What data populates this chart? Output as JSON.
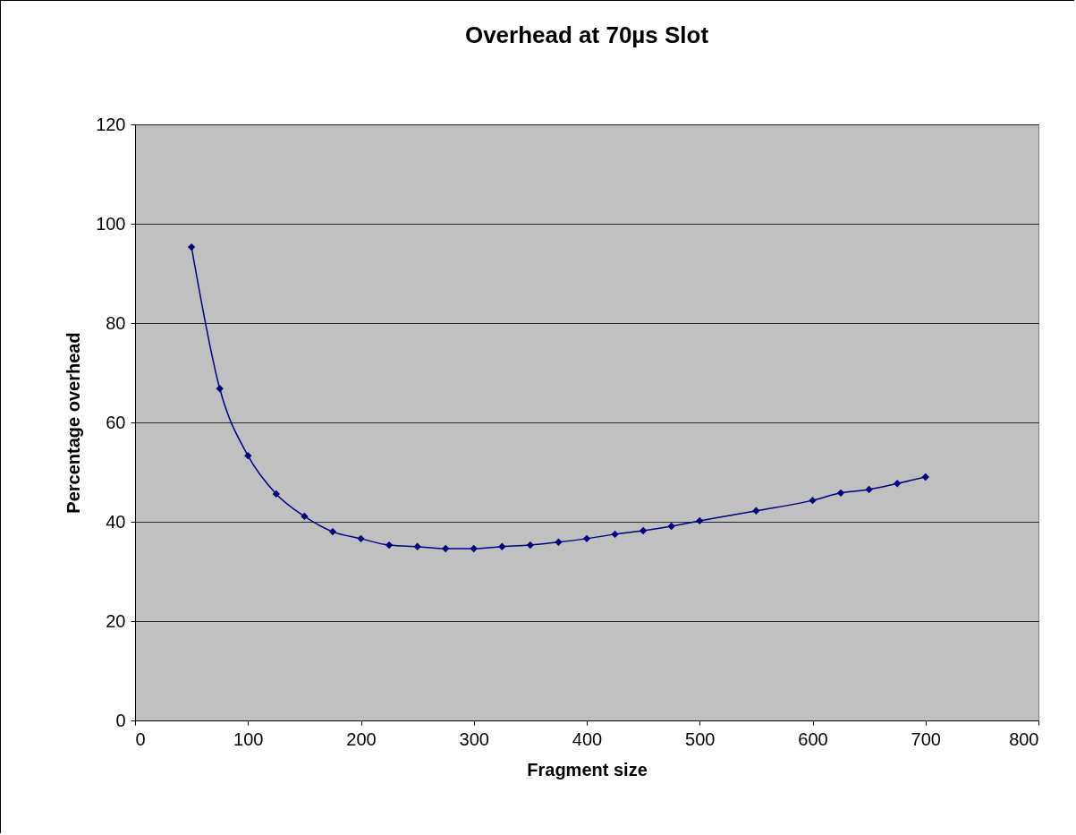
{
  "chart_data": {
    "type": "line",
    "title": "Overhead at 70µs Slot",
    "xlabel": "Fragment size",
    "ylabel": "Percentage overhead",
    "x": [
      50,
      75,
      100,
      125,
      150,
      175,
      200,
      225,
      250,
      275,
      300,
      325,
      350,
      375,
      400,
      425,
      450,
      475,
      500,
      550,
      600,
      625,
      650,
      675,
      700
    ],
    "series": [
      {
        "color": "#000080",
        "values": [
          95.3,
          66.8,
          53.3,
          45.6,
          41.1,
          38.0,
          36.6,
          35.3,
          35.0,
          34.6,
          34.6,
          35.0,
          35.3,
          35.9,
          36.6,
          37.5,
          38.2,
          39.1,
          40.2,
          42.2,
          44.3,
          45.8,
          46.5,
          47.7,
          49.0
        ]
      }
    ],
    "xlim": [
      0,
      800
    ],
    "xticks": [
      0,
      100,
      200,
      300,
      400,
      500,
      600,
      700,
      800
    ],
    "ylim": [
      0,
      120
    ],
    "yticks": [
      0,
      20,
      40,
      60,
      80,
      100,
      120
    ],
    "grid": "y",
    "marker": "diamond",
    "line_style": "solid"
  }
}
